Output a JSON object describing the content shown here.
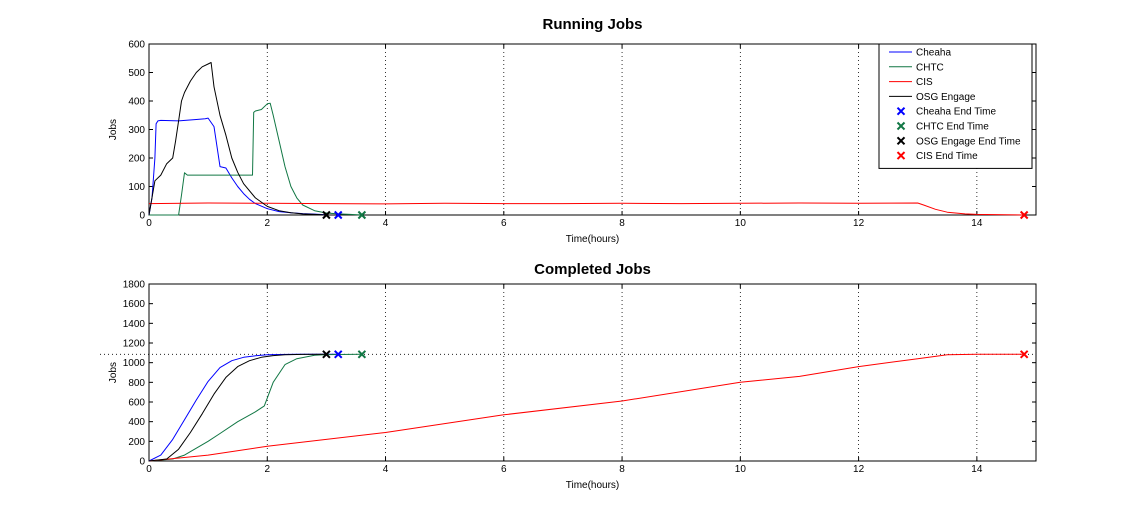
{
  "chart_data": [
    {
      "type": "line",
      "title": "Running Jobs",
      "xlabel": "Time(hours)",
      "ylabel": "Jobs",
      "xlim": [
        0,
        15
      ],
      "ylim": [
        0,
        600
      ],
      "xticks": [
        0,
        2,
        4,
        6,
        8,
        10,
        12,
        14
      ],
      "yticks": [
        0,
        100,
        200,
        300,
        400,
        500,
        600
      ],
      "grid": "vertical dotted",
      "legend_position": "top-right",
      "legend": [
        "Cheaha",
        "CHTC",
        "CIS",
        "OSG Engage",
        "Cheaha End Time",
        "CHTC End Time",
        "OSG Engage End Time",
        "CIS End Time"
      ],
      "series": [
        {
          "name": "Cheaha",
          "color": "#0000ff",
          "marker": "line",
          "x": [
            0,
            0.05,
            0.1,
            0.12,
            0.15,
            0.2,
            0.5,
            0.8,
            0.95,
            1.0,
            1.1,
            1.15,
            1.2,
            1.3,
            1.4,
            1.5,
            1.6,
            1.7,
            1.8,
            2.0,
            2.2,
            2.4,
            2.6,
            2.8,
            3.0
          ],
          "y": [
            0,
            60,
            200,
            320,
            330,
            332,
            330,
            335,
            338,
            340,
            310,
            240,
            170,
            165,
            130,
            100,
            75,
            55,
            40,
            22,
            12,
            8,
            5,
            3,
            1
          ]
        },
        {
          "name": "CHTC",
          "color": "#117744",
          "marker": "line",
          "x": [
            0,
            0.5,
            0.55,
            0.6,
            0.65,
            1.0,
            1.5,
            1.75,
            1.77,
            1.8,
            1.9,
            2.0,
            2.05,
            2.1,
            2.2,
            2.3,
            2.4,
            2.5,
            2.6,
            2.8,
            3.0,
            3.2,
            3.4,
            3.6
          ],
          "y": [
            0,
            0,
            70,
            148,
            140,
            140,
            140,
            140,
            360,
            365,
            370,
            390,
            392,
            350,
            260,
            170,
            100,
            60,
            35,
            15,
            7,
            4,
            2,
            0
          ]
        },
        {
          "name": "CIS",
          "color": "#ff0000",
          "marker": "line",
          "x": [
            0,
            1,
            2,
            3,
            4,
            5,
            6,
            7,
            8,
            9,
            10,
            11,
            12,
            13.0,
            13.1,
            13.3,
            13.5,
            13.8,
            14,
            14.5,
            14.8
          ],
          "y": [
            40,
            42,
            41,
            40,
            39,
            41,
            40,
            40,
            41,
            40,
            41,
            42,
            41,
            42,
            35,
            20,
            10,
            4,
            2,
            1,
            0
          ]
        },
        {
          "name": "OSG Engage",
          "color": "#000000",
          "marker": "line",
          "x": [
            0,
            0.1,
            0.2,
            0.3,
            0.4,
            0.45,
            0.5,
            0.55,
            0.6,
            0.7,
            0.8,
            0.9,
            1.0,
            1.05,
            1.1,
            1.2,
            1.3,
            1.4,
            1.5,
            1.6,
            1.8,
            2.0,
            2.2,
            2.4,
            2.6,
            2.8,
            3.0
          ],
          "y": [
            0,
            120,
            140,
            180,
            200,
            260,
            330,
            400,
            430,
            470,
            500,
            520,
            530,
            535,
            450,
            350,
            280,
            200,
            150,
            110,
            60,
            30,
            15,
            8,
            4,
            2,
            0
          ]
        }
      ],
      "end_markers": [
        {
          "name": "OSG Engage End Time",
          "color": "#000000",
          "x": 3.0,
          "y": 0
        },
        {
          "name": "Cheaha End Time",
          "color": "#0000ff",
          "x": 3.2,
          "y": 0
        },
        {
          "name": "CHTC End Time",
          "color": "#117744",
          "x": 3.6,
          "y": 0
        },
        {
          "name": "CIS End Time",
          "color": "#ff0000",
          "x": 14.8,
          "y": 0
        }
      ]
    },
    {
      "type": "line",
      "title": "Completed Jobs",
      "xlabel": "Time(hours)",
      "ylabel": "Jobs",
      "xlim": [
        0,
        15
      ],
      "ylim": [
        0,
        1800
      ],
      "xticks": [
        0,
        2,
        4,
        6,
        8,
        10,
        12,
        14
      ],
      "yticks": [
        0,
        200,
        400,
        600,
        800,
        1000,
        1200,
        1400,
        1600,
        1800
      ],
      "grid": "vertical dotted",
      "reference_line_y": 1085,
      "series": [
        {
          "name": "Cheaha",
          "color": "#0000ff",
          "marker": "line",
          "x": [
            0,
            0.2,
            0.4,
            0.6,
            0.8,
            1.0,
            1.2,
            1.4,
            1.6,
            1.8,
            2.0,
            2.2,
            2.5,
            3.2
          ],
          "y": [
            0,
            60,
            220,
            420,
            620,
            810,
            950,
            1020,
            1055,
            1070,
            1080,
            1083,
            1085,
            1085
          ]
        },
        {
          "name": "CHTC",
          "color": "#117744",
          "marker": "line",
          "x": [
            0,
            0.4,
            0.6,
            0.8,
            1.0,
            1.2,
            1.5,
            1.8,
            1.95,
            2.1,
            2.3,
            2.5,
            2.8,
            3.0,
            3.6
          ],
          "y": [
            0,
            20,
            60,
            130,
            200,
            280,
            400,
            500,
            560,
            800,
            980,
            1040,
            1075,
            1082,
            1085
          ]
        },
        {
          "name": "CIS",
          "color": "#ff0000",
          "marker": "line",
          "x": [
            0,
            1,
            2,
            4,
            6,
            8,
            10,
            11,
            12,
            13,
            13.5,
            14,
            14.8
          ],
          "y": [
            0,
            60,
            150,
            290,
            470,
            610,
            800,
            860,
            960,
            1040,
            1080,
            1085,
            1085
          ]
        },
        {
          "name": "OSG Engage",
          "color": "#000000",
          "marker": "line",
          "x": [
            0,
            0.3,
            0.5,
            0.7,
            0.9,
            1.1,
            1.3,
            1.5,
            1.7,
            1.9,
            2.1,
            2.3,
            2.6,
            3.0
          ],
          "y": [
            0,
            20,
            120,
            290,
            480,
            680,
            850,
            960,
            1020,
            1055,
            1072,
            1080,
            1084,
            1085
          ]
        }
      ],
      "end_markers": [
        {
          "name": "OSG Engage End Time",
          "color": "#000000",
          "x": 3.0,
          "y": 1085
        },
        {
          "name": "Cheaha End Time",
          "color": "#0000ff",
          "x": 3.2,
          "y": 1085
        },
        {
          "name": "CHTC End Time",
          "color": "#117744",
          "x": 3.6,
          "y": 1085
        },
        {
          "name": "CIS End Time",
          "color": "#ff0000",
          "x": 14.8,
          "y": 1085
        }
      ]
    }
  ]
}
